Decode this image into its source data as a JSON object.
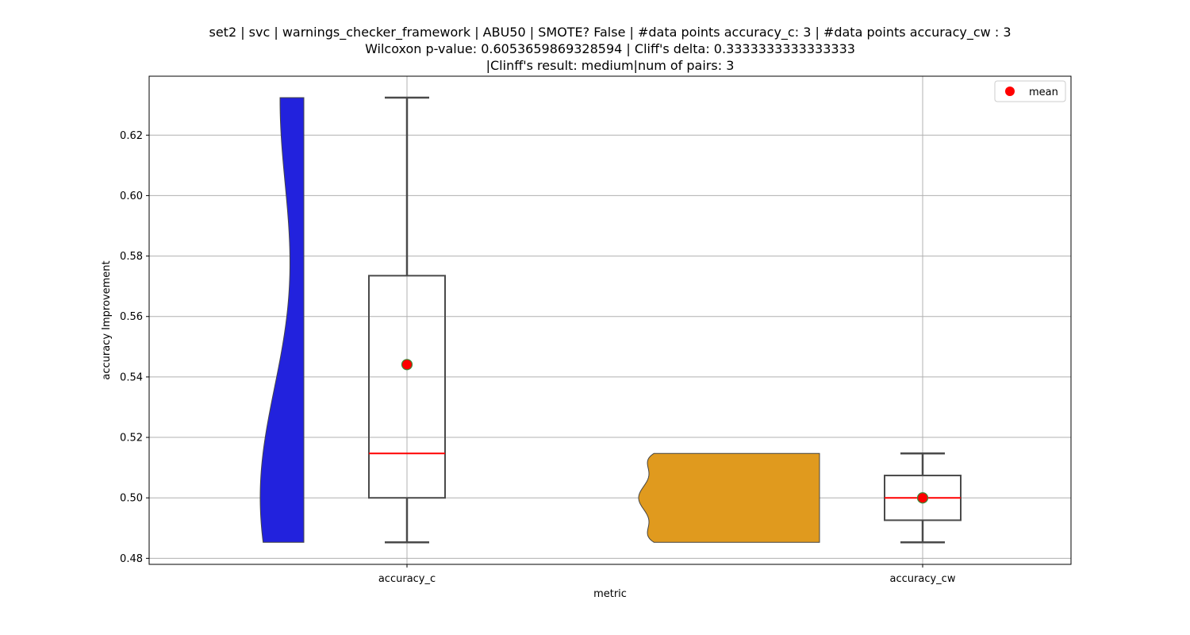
{
  "chart_data": {
    "type": "violin-box",
    "title_lines": [
      "set2 | svc | warnings_checker_framework | ABU50 | SMOTE? False | #data points accuracy_c: 3 | #data points accuracy_cw : 3",
      "Wilcoxon p-value: 0.6053659869328594 | Cliff's delta: 0.3333333333333333",
      "|Clinff's result: medium|num of pairs: 3"
    ],
    "xlabel": "metric",
    "ylabel": "accuracy Improvement",
    "categories": [
      "accuracy_c",
      "accuracy_cw"
    ],
    "ylim": [
      0.478,
      0.6395
    ],
    "yticks": [
      0.48,
      0.5,
      0.52,
      0.54,
      0.56,
      0.58,
      0.6,
      0.62
    ],
    "ytick_labels": [
      "0.48",
      "0.50",
      "0.52",
      "0.54",
      "0.56",
      "0.58",
      "0.60",
      "0.62"
    ],
    "grid": true,
    "legend": {
      "placement": "top-right",
      "entries": [
        {
          "label": "mean",
          "color": "#ff0000"
        }
      ]
    },
    "colors": {
      "violin_c": "#2222dd",
      "violin_cw": "#e09a1e",
      "median": "#ff0000",
      "mean_fill": "#ff0000",
      "mean_edge": "#3a8a3a",
      "box_edge": "#4a4a4a"
    },
    "series": [
      {
        "category": "accuracy_c",
        "values": [
          0.4853,
          0.5147,
          0.6324
        ],
        "box": {
          "whisker_low": 0.4853,
          "q1": 0.5,
          "median": 0.5147,
          "q3": 0.5735,
          "whisker_high": 0.6324
        },
        "mean": 0.5441
      },
      {
        "category": "accuracy_cw",
        "values": [
          0.4853,
          0.5,
          0.5147
        ],
        "box": {
          "whisker_low": 0.4853,
          "q1": 0.4926,
          "median": 0.5,
          "q3": 0.5074,
          "whisker_high": 0.5147
        },
        "mean": 0.5
      }
    ]
  }
}
